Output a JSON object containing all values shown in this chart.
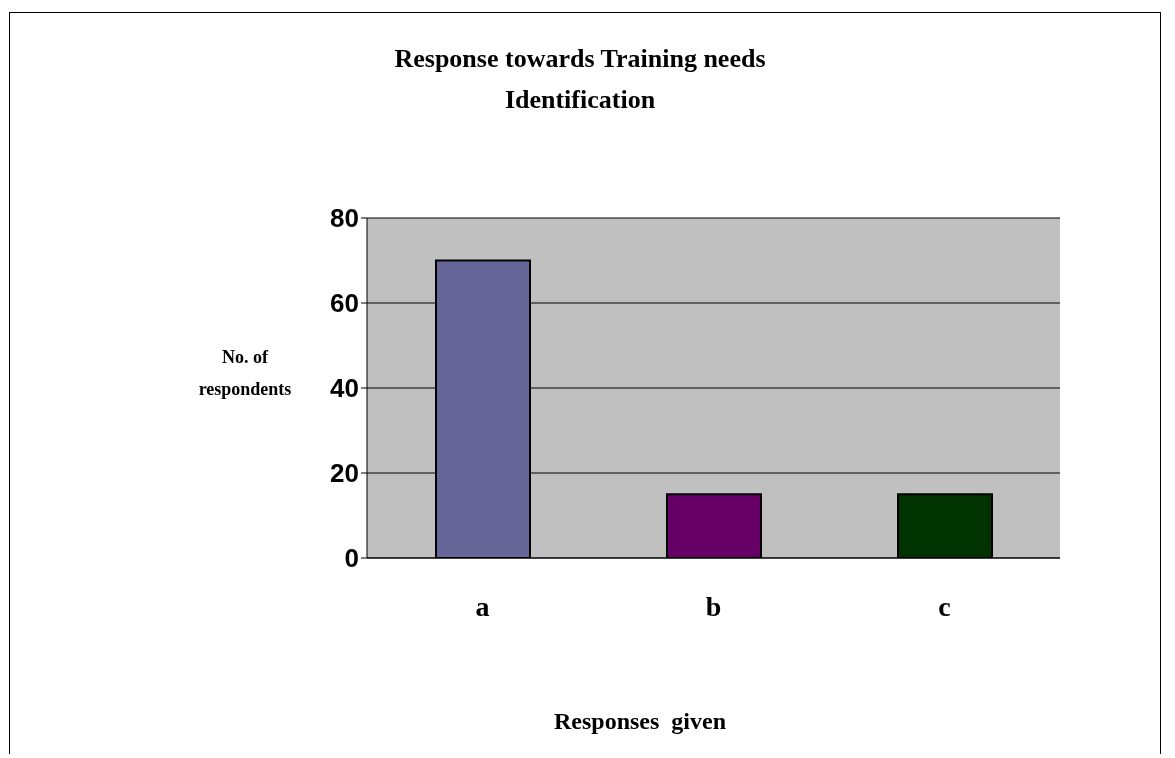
{
  "chart_data": {
    "type": "bar",
    "title": "Response towards Training needs Identification",
    "xlabel": "Responses  given",
    "ylabel": "No. of respondents",
    "categories": [
      "a",
      "b",
      "c"
    ],
    "values": [
      70,
      15,
      15
    ],
    "colors": [
      "#666699",
      "#660066",
      "#003300"
    ],
    "ylim": [
      0,
      80
    ],
    "yticks": [
      0,
      20,
      40,
      60,
      80
    ],
    "grid": "y"
  }
}
